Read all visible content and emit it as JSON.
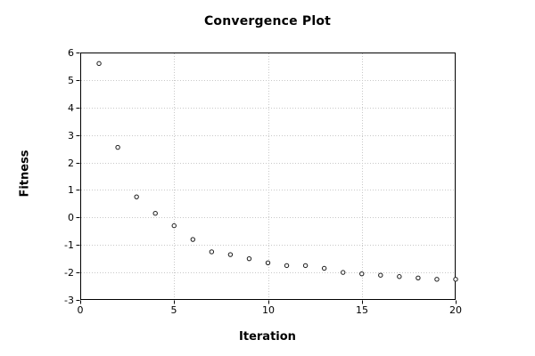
{
  "chart": {
    "title": "Convergence Plot",
    "xlabel": "Iteration",
    "ylabel": "Fitness"
  },
  "chart_data": {
    "type": "scatter",
    "title": "Convergence Plot",
    "xlabel": "Iteration",
    "ylabel": "Fitness",
    "x": [
      1,
      2,
      3,
      4,
      5,
      6,
      7,
      8,
      9,
      10,
      11,
      12,
      13,
      14,
      15,
      16,
      17,
      18,
      19,
      20
    ],
    "y": [
      5.6,
      2.55,
      0.75,
      0.15,
      -0.3,
      -0.8,
      -1.25,
      -1.35,
      -1.5,
      -1.65,
      -1.75,
      -1.75,
      -1.85,
      -2.0,
      -2.05,
      -2.1,
      -2.15,
      -2.2,
      -2.25,
      -2.25
    ],
    "xlim": [
      0,
      20
    ],
    "ylim": [
      -3,
      6
    ],
    "xticks": [
      0,
      5,
      10,
      15,
      20
    ],
    "yticks": [
      6,
      5,
      4,
      3,
      2,
      1,
      0,
      -1,
      -2,
      -3
    ],
    "grid_x": [
      5,
      10,
      15
    ],
    "grid_y": [
      5,
      4,
      3,
      2,
      1,
      0,
      -1,
      -2
    ],
    "grid": true,
    "legend": false,
    "marker": "open-circle",
    "colors": {
      "background": "#ffffff",
      "frame": "#000000",
      "grid": "#c8c8c8",
      "marker_stroke": "#1a1a1a",
      "marker_fill": "#ffffff",
      "text": "#000000"
    }
  }
}
